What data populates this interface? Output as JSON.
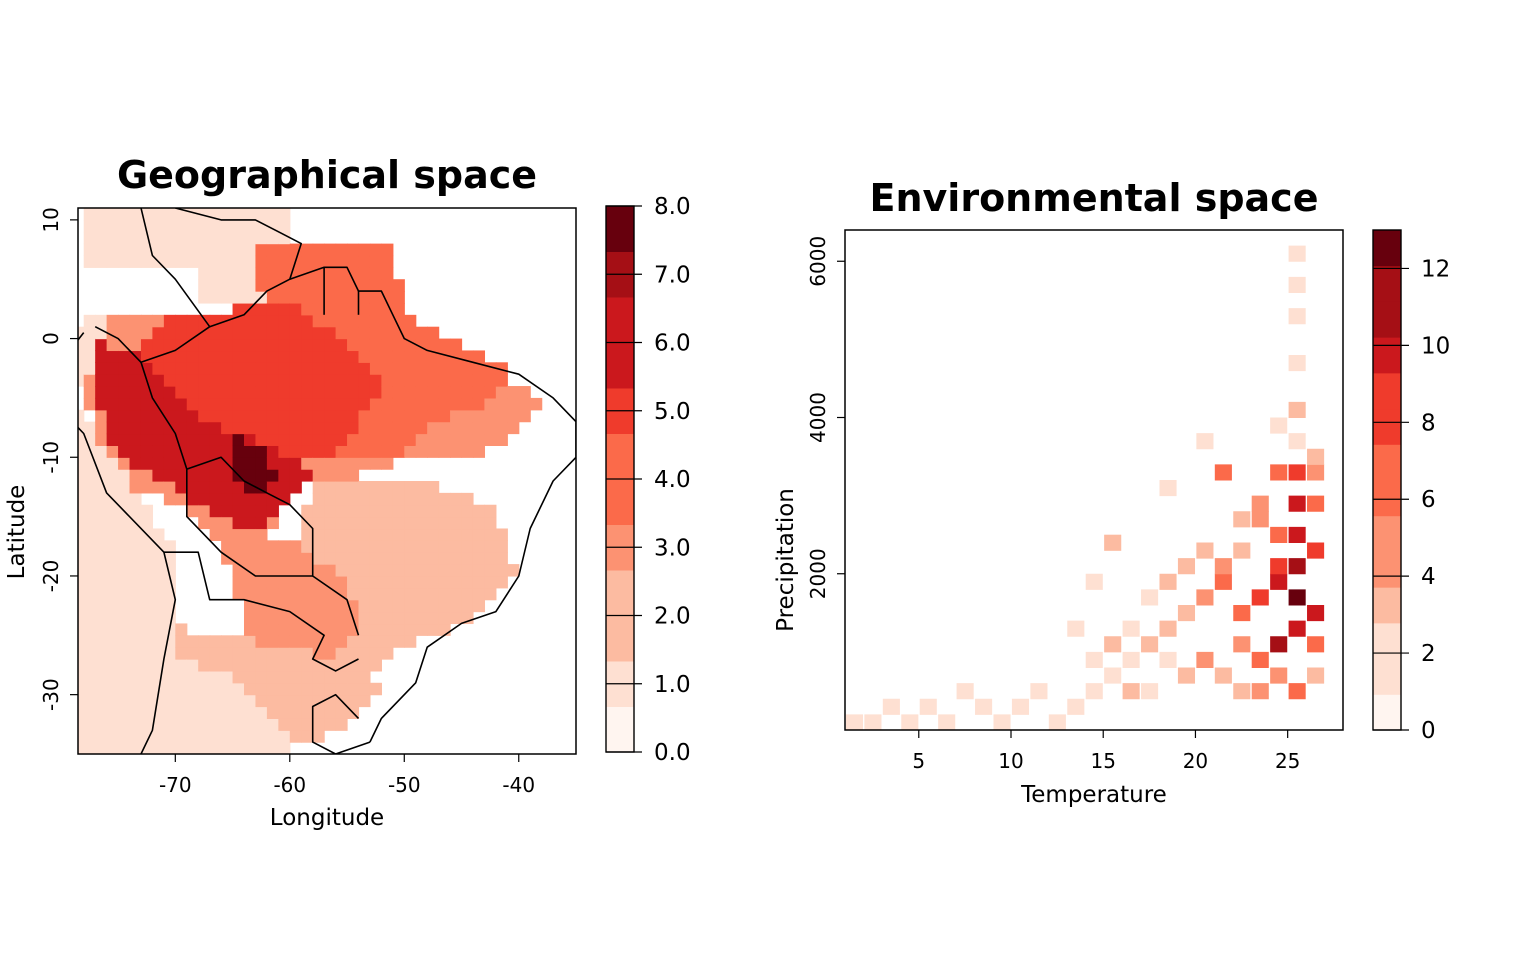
{
  "colors": {
    "ramp": [
      "#fff5f0",
      "#fee0d2",
      "#fcbba1",
      "#fc9272",
      "#fb6a4a",
      "#ef3b2c",
      "#cb181d",
      "#a50f15",
      "#67000d"
    ],
    "border": "#000000"
  },
  "chart_data": [
    {
      "type": "heatmap",
      "title": "Geographical space",
      "xlabel": "Longitude",
      "ylabel": "Latitude",
      "xlim": [
        -78.5,
        -35
      ],
      "ylim": [
        -35,
        11
      ],
      "x_ticks": [
        -70,
        -60,
        -50,
        -40
      ],
      "x_tick_labels": [
        "-70",
        "-60",
        "-50",
        "-40"
      ],
      "y_ticks": [
        -30,
        -20,
        -10,
        0,
        10
      ],
      "y_tick_labels": [
        "-30",
        "-20",
        "-10",
        "0",
        "10"
      ],
      "cell_size": 1,
      "colorbar": {
        "min": 0,
        "max": 8,
        "ticks": [
          0,
          1,
          2,
          3,
          4,
          5,
          6,
          7,
          8
        ],
        "tick_labels": [
          "0.0",
          "1.0",
          "2.0",
          "3.0",
          "4.0",
          "5.0",
          "6.0",
          "7.0",
          "8.0"
        ]
      },
      "regions": [
        {
          "value": 1,
          "polygon": [
            [
              -78,
              11
            ],
            [
              -60,
              11
            ],
            [
              -60,
              3
            ],
            [
              -68,
              3
            ],
            [
              -68,
              6
            ],
            [
              -78,
              6
            ]
          ]
        },
        {
          "value": 1,
          "polygon": [
            [
              -78,
              2
            ],
            [
              -73,
              2
            ],
            [
              -75,
              -4
            ],
            [
              -80,
              -4
            ]
          ]
        },
        {
          "value": 3,
          "polygon": [
            [
              -76,
              2
            ],
            [
              -63,
              2
            ],
            [
              -53,
              1
            ],
            [
              -48,
              -1
            ],
            [
              -42,
              -3
            ],
            [
              -38,
              -5
            ],
            [
              -40,
              -8
            ],
            [
              -44,
              -10
            ],
            [
              -50,
              -10
            ],
            [
              -55,
              -12
            ],
            [
              -60,
              -12
            ],
            [
              -62,
              -18
            ],
            [
              -66,
              -17
            ],
            [
              -70,
              -14
            ],
            [
              -75,
              -12
            ],
            [
              -78,
              -5
            ]
          ]
        },
        {
          "value": 4,
          "polygon": [
            [
              -63,
              8
            ],
            [
              -51,
              8
            ],
            [
              -50,
              2
            ],
            [
              -44,
              -1
            ],
            [
              -40,
              -3
            ],
            [
              -42,
              -5
            ],
            [
              -47,
              -7
            ],
            [
              -50,
              -10
            ],
            [
              -56,
              -10
            ],
            [
              -56,
              -2
            ],
            [
              -62,
              0
            ]
          ]
        },
        {
          "value": 5,
          "polygon": [
            [
              -70,
              2
            ],
            [
              -60,
              3
            ],
            [
              -55,
              0
            ],
            [
              -52,
              -4
            ],
            [
              -55,
              -9
            ],
            [
              -60,
              -11
            ],
            [
              -66,
              -12
            ],
            [
              -72,
              -10
            ],
            [
              -76,
              -4
            ]
          ]
        },
        {
          "value": 6,
          "polygon": [
            [
              -77,
              0
            ],
            [
              -72,
              -2
            ],
            [
              -67,
              -7
            ],
            [
              -62,
              -9
            ],
            [
              -58,
              -11
            ],
            [
              -60,
              -14
            ],
            [
              -63,
              -16
            ],
            [
              -66,
              -15
            ],
            [
              -71,
              -12
            ],
            [
              -75,
              -10
            ],
            [
              -77,
              -5
            ]
          ]
        },
        {
          "value": 8,
          "polygon": [
            [
              -65,
              -8
            ],
            [
              -62,
              -9
            ],
            [
              -61,
              -12
            ],
            [
              -63,
              -13
            ],
            [
              -65,
              -11
            ]
          ]
        },
        {
          "value": 2,
          "polygon": [
            [
              -58,
              -12
            ],
            [
              -48,
              -12
            ],
            [
              -42,
              -14
            ],
            [
              -40,
              -20
            ],
            [
              -44,
              -24
            ],
            [
              -50,
              -26
            ],
            [
              -53,
              -28
            ],
            [
              -58,
              -25
            ],
            [
              -60,
              -20
            ]
          ]
        },
        {
          "value": 3,
          "polygon": [
            [
              -66,
              -17
            ],
            [
              -60,
              -17
            ],
            [
              -55,
              -20
            ],
            [
              -54,
              -24
            ],
            [
              -56,
              -27
            ],
            [
              -60,
              -28
            ],
            [
              -64,
              -24
            ]
          ]
        },
        {
          "value": 2,
          "polygon": [
            [
              -72,
              -24
            ],
            [
              -60,
              -26
            ],
            [
              -55,
              -27
            ],
            [
              -52,
              -29
            ],
            [
              -54,
              -32
            ],
            [
              -58,
              -34
            ],
            [
              -64,
              -34
            ],
            [
              -70,
              -32
            ]
          ]
        },
        {
          "value": 1,
          "polygon": [
            [
              -74,
              -26
            ],
            [
              -66,
              -28
            ],
            [
              -60,
              -33
            ],
            [
              -60,
              -35
            ],
            [
              -74,
              -35
            ]
          ]
        },
        {
          "value": 1,
          "polygon": [
            [
              -79,
              -5
            ],
            [
              -74,
              -12
            ],
            [
              -70,
              -18
            ],
            [
              -70,
              -35
            ],
            [
              -79,
              -35
            ]
          ]
        }
      ],
      "outline_paths": [
        [
          [
            -78,
            0.5
          ],
          [
            -80,
            -2
          ],
          [
            -81,
            -5
          ],
          [
            -78,
            -8
          ],
          [
            -76,
            -13
          ],
          [
            -71,
            -18
          ],
          [
            -70,
            -22
          ],
          [
            -71,
            -27
          ],
          [
            -72,
            -33
          ],
          [
            -73,
            -35
          ]
        ],
        [
          [
            -73,
            11
          ],
          [
            -72,
            7
          ],
          [
            -70,
            5
          ],
          [
            -67,
            1
          ],
          [
            -70,
            -1
          ],
          [
            -73,
            -2
          ],
          [
            -75,
            0
          ],
          [
            -77,
            1
          ]
        ],
        [
          [
            -73,
            -2
          ],
          [
            -72,
            -5
          ],
          [
            -70,
            -8
          ],
          [
            -69,
            -11
          ]
        ],
        [
          [
            -69,
            -11
          ],
          [
            -66,
            -10
          ],
          [
            -64,
            -12
          ],
          [
            -62,
            -13
          ],
          [
            -60,
            -14
          ],
          [
            -58,
            -16
          ],
          [
            -58,
            -20
          ],
          [
            -55,
            -22
          ],
          [
            -54,
            -25
          ]
        ],
        [
          [
            -69,
            -11
          ],
          [
            -69,
            -15
          ],
          [
            -66,
            -18
          ],
          [
            -63,
            -20
          ],
          [
            -60,
            -20
          ],
          [
            -58,
            -20
          ]
        ],
        [
          [
            -71,
            -18
          ],
          [
            -68,
            -18
          ],
          [
            -67,
            -22
          ],
          [
            -64,
            -22
          ],
          [
            -60,
            -23
          ],
          [
            -57,
            -25
          ],
          [
            -58,
            -27
          ],
          [
            -56,
            -28
          ],
          [
            -54,
            -27
          ]
        ],
        [
          [
            -67,
            1
          ],
          [
            -64,
            2
          ],
          [
            -62,
            4
          ],
          [
            -60,
            5
          ],
          [
            -59,
            8
          ],
          [
            -61,
            9
          ],
          [
            -63,
            10
          ],
          [
            -66,
            10
          ],
          [
            -70,
            11
          ]
        ],
        [
          [
            -60,
            5
          ],
          [
            -57,
            6
          ],
          [
            -55,
            6
          ],
          [
            -54,
            4
          ],
          [
            -52,
            4
          ],
          [
            -51,
            2
          ],
          [
            -50,
            0
          ],
          [
            -48,
            -1
          ],
          [
            -44,
            -2
          ],
          [
            -40,
            -3
          ],
          [
            -37,
            -5
          ],
          [
            -35,
            -7
          ],
          [
            -35,
            -10
          ],
          [
            -37,
            -12
          ],
          [
            -39,
            -16
          ],
          [
            -40,
            -20
          ],
          [
            -42,
            -23
          ],
          [
            -45,
            -24
          ],
          [
            -48,
            -26
          ],
          [
            -49,
            -29
          ],
          [
            -52,
            -32
          ],
          [
            -53,
            -34
          ]
        ],
        [
          [
            -57,
            6
          ],
          [
            -57,
            2
          ]
        ],
        [
          [
            -54,
            4
          ],
          [
            -54,
            2
          ]
        ],
        [
          [
            -53,
            -34
          ],
          [
            -56,
            -35
          ],
          [
            -58,
            -34
          ],
          [
            -58,
            -31
          ],
          [
            -56,
            -30
          ],
          [
            -54,
            -32
          ]
        ]
      ]
    },
    {
      "type": "heatmap",
      "title": "Environmental space",
      "xlabel": "Temperature",
      "ylabel": "Precipitation",
      "xlim": [
        1,
        28
      ],
      "ylim": [
        0,
        6400
      ],
      "x_ticks": [
        5,
        10,
        15,
        20,
        25
      ],
      "x_tick_labels": [
        "5",
        "10",
        "15",
        "20",
        "25"
      ],
      "y_ticks": [
        2000,
        4000,
        6000
      ],
      "y_tick_labels": [
        "2000",
        "4000",
        "6000"
      ],
      "cell_w": 0.9,
      "cell_h": 200,
      "colorbar": {
        "min": 0,
        "max": 13,
        "ticks": [
          0,
          2,
          4,
          6,
          8,
          10,
          12
        ],
        "tick_labels": [
          "0",
          "2",
          "4",
          "6",
          "8",
          "10",
          "12"
        ]
      },
      "cells": [
        [
          1.5,
          100,
          1
        ],
        [
          2.5,
          100,
          1
        ],
        [
          3.5,
          300,
          1
        ],
        [
          4.5,
          100,
          1
        ],
        [
          5.5,
          300,
          1
        ],
        [
          6.5,
          100,
          1
        ],
        [
          7.5,
          500,
          1
        ],
        [
          8.5,
          300,
          1
        ],
        [
          9.5,
          100,
          2
        ],
        [
          10.5,
          300,
          2
        ],
        [
          11.5,
          500,
          1
        ],
        [
          12.5,
          100,
          1
        ],
        [
          13.5,
          300,
          2
        ],
        [
          14.5,
          500,
          1
        ],
        [
          15.5,
          700,
          2
        ],
        [
          16.5,
          900,
          2
        ],
        [
          17.5,
          1100,
          3
        ],
        [
          18.5,
          1300,
          3
        ],
        [
          19.5,
          1500,
          4
        ],
        [
          20.5,
          1700,
          5
        ],
        [
          21.5,
          1900,
          6
        ],
        [
          22.5,
          1500,
          6
        ],
        [
          23.5,
          1700,
          8
        ],
        [
          24.5,
          1900,
          10
        ],
        [
          25.5,
          1700,
          13
        ],
        [
          26.5,
          1500,
          9
        ],
        [
          25.5,
          2100,
          11
        ],
        [
          25.5,
          2500,
          9
        ],
        [
          26.5,
          2300,
          8
        ],
        [
          24.5,
          2500,
          7
        ],
        [
          25.5,
          2900,
          9
        ],
        [
          26.5,
          2900,
          7
        ],
        [
          25.5,
          3300,
          8
        ],
        [
          26.5,
          3300,
          5
        ],
        [
          24.5,
          3300,
          6
        ],
        [
          23.5,
          2900,
          5
        ],
        [
          22.5,
          2300,
          4
        ],
        [
          21.5,
          2100,
          5
        ],
        [
          20.5,
          2300,
          3
        ],
        [
          19.5,
          2100,
          4
        ],
        [
          18.5,
          1900,
          3
        ],
        [
          17.5,
          1700,
          2
        ],
        [
          16.5,
          1300,
          2
        ],
        [
          15.5,
          1100,
          3
        ],
        [
          14.5,
          900,
          2
        ],
        [
          21.5,
          3300,
          7
        ],
        [
          22.5,
          2700,
          4
        ],
        [
          23.5,
          2700,
          5
        ],
        [
          24.5,
          2100,
          8
        ],
        [
          22.5,
          1100,
          5
        ],
        [
          23.5,
          900,
          6
        ],
        [
          24.5,
          700,
          5
        ],
        [
          25.5,
          500,
          6
        ],
        [
          26.5,
          700,
          4
        ],
        [
          24.5,
          1100,
          11
        ],
        [
          25.5,
          1300,
          9
        ],
        [
          26.5,
          1100,
          7
        ],
        [
          21.5,
          700,
          4
        ],
        [
          20.5,
          900,
          5
        ],
        [
          19.5,
          700,
          3
        ],
        [
          18.5,
          900,
          2
        ],
        [
          17.5,
          500,
          2
        ],
        [
          16.5,
          500,
          3
        ],
        [
          22.5,
          500,
          3
        ],
        [
          23.5,
          500,
          5
        ],
        [
          25.5,
          4100,
          3
        ],
        [
          24.5,
          3900,
          2
        ],
        [
          25.5,
          3700,
          2
        ],
        [
          26.5,
          3500,
          4
        ],
        [
          25.5,
          4700,
          1
        ],
        [
          25.5,
          5300,
          1
        ],
        [
          25.5,
          5700,
          1
        ],
        [
          25.5,
          6100,
          1
        ],
        [
          20.5,
          3700,
          1
        ],
        [
          18.5,
          3100,
          2
        ],
        [
          15.5,
          2400,
          3
        ],
        [
          14.5,
          1900,
          2
        ],
        [
          13.5,
          1300,
          1
        ]
      ]
    }
  ]
}
